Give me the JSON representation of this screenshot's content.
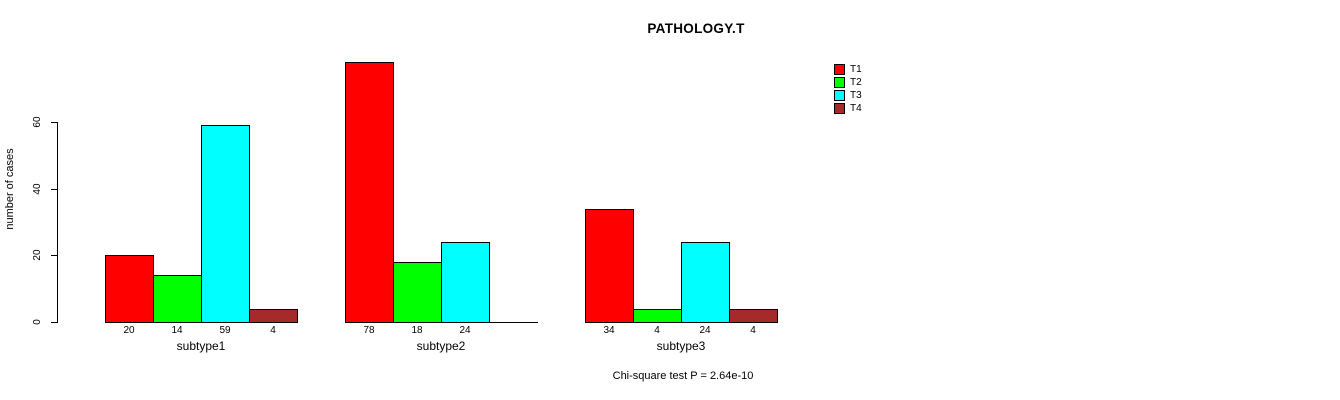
{
  "figure": {
    "title": "PATHOLOGY.T",
    "ylabel": "number of cases",
    "footer": "Chi-square test P = 2.64e-10"
  },
  "chart_data": {
    "type": "bar",
    "categories": [
      "subtype1",
      "subtype2",
      "subtype3"
    ],
    "series": [
      {
        "name": "T1",
        "color": "#FF0000",
        "values": [
          20,
          78,
          34
        ]
      },
      {
        "name": "T2",
        "color": "#00FF00",
        "values": [
          14,
          18,
          4
        ]
      },
      {
        "name": "T3",
        "color": "#00FFFF",
        "values": [
          59,
          24,
          24
        ]
      },
      {
        "name": "T4",
        "color": "#A52A2A",
        "values": [
          4,
          0,
          4
        ]
      }
    ],
    "title": "PATHOLOGY.T",
    "xlabel": "",
    "ylabel": "number of cases",
    "ylim": [
      0,
      80
    ],
    "y_ticks": [
      0,
      20,
      40,
      60
    ],
    "grid": false,
    "legend_position": "top-right",
    "bar_value_labels": "values printed under each bar; zero-value bars drawn as baseline segment with no label",
    "annotation": "Chi-square test P = 2.64e-10"
  }
}
